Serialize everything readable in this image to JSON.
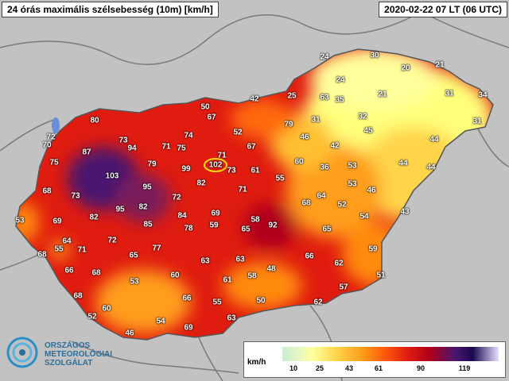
{
  "title": "24 órás maximális szélsebesség (10m) [km/h]",
  "timestamp": "2020-02-22 07 LT (06 UTC)",
  "logo": {
    "line1": "ORSZÁGOS",
    "line2": "METEOROLÓGIAI",
    "line3": "SZOLGÁLAT"
  },
  "legend": {
    "unit": "km/h",
    "ticks": [
      "10",
      "25",
      "43",
      "61",
      "90",
      "119"
    ]
  },
  "colors": {
    "land": "#c2c2c2",
    "border": "#7a7a7a",
    "highlight": "#ffe000"
  },
  "stations": [
    [
      "24",
      408,
      72
    ],
    [
      "30",
      471,
      70
    ],
    [
      "21",
      553,
      82
    ],
    [
      "20",
      510,
      86
    ],
    [
      "24",
      428,
      101
    ],
    [
      "21",
      481,
      119
    ],
    [
      "63",
      408,
      123
    ],
    [
      "35",
      427,
      126
    ],
    [
      "31",
      565,
      118
    ],
    [
      "34",
      607,
      120
    ],
    [
      "25",
      367,
      121
    ],
    [
      "42",
      320,
      125
    ],
    [
      "50",
      258,
      135
    ],
    [
      "67",
      266,
      148
    ],
    [
      "32",
      456,
      147
    ],
    [
      "31",
      397,
      151
    ],
    [
      "31",
      600,
      153
    ],
    [
      "79",
      363,
      157
    ],
    [
      "52",
      299,
      167
    ],
    [
      "45",
      463,
      165
    ],
    [
      "44",
      546,
      176
    ],
    [
      "46",
      383,
      173
    ],
    [
      "74",
      237,
      171
    ],
    [
      "80",
      119,
      152
    ],
    [
      "72",
      64,
      173
    ],
    [
      "70",
      59,
      183
    ],
    [
      "73",
      155,
      177
    ],
    [
      "94",
      166,
      187
    ],
    [
      "71",
      209,
      185
    ],
    [
      "75",
      228,
      187
    ],
    [
      "67",
      316,
      185
    ],
    [
      "42",
      421,
      184
    ],
    [
      "87",
      109,
      192
    ],
    [
      "75",
      68,
      205
    ],
    [
      "79",
      191,
      207
    ],
    [
      "71",
      279,
      196
    ],
    [
      "99",
      234,
      213
    ],
    [
      "102",
      271,
      208
    ],
    [
      "73",
      291,
      215
    ],
    [
      "61",
      321,
      215
    ],
    [
      "60",
      376,
      204
    ],
    [
      "36",
      408,
      211
    ],
    [
      "53",
      443,
      209
    ],
    [
      "44",
      507,
      206
    ],
    [
      "44",
      542,
      211
    ],
    [
      "103",
      141,
      222
    ],
    [
      "55",
      352,
      225
    ],
    [
      "82",
      253,
      231
    ],
    [
      "95",
      185,
      236
    ],
    [
      "68",
      59,
      241
    ],
    [
      "73",
      95,
      247
    ],
    [
      "71",
      305,
      239
    ],
    [
      "53",
      443,
      232
    ],
    [
      "46",
      467,
      240
    ],
    [
      "72",
      222,
      249
    ],
    [
      "64",
      404,
      247
    ],
    [
      "43",
      509,
      267
    ],
    [
      "53",
      25,
      278
    ],
    [
      "95",
      151,
      264
    ],
    [
      "82",
      180,
      261
    ],
    [
      "68",
      385,
      256
    ],
    [
      "52",
      430,
      258
    ],
    [
      "84",
      229,
      272
    ],
    [
      "69",
      271,
      269
    ],
    [
      "58",
      321,
      277
    ],
    [
      "54",
      458,
      273
    ],
    [
      "69",
      72,
      279
    ],
    [
      "82",
      118,
      274
    ],
    [
      "85",
      186,
      283
    ],
    [
      "78",
      237,
      288
    ],
    [
      "59",
      269,
      284
    ],
    [
      "65",
      309,
      289
    ],
    [
      "92",
      343,
      284
    ],
    [
      "65",
      411,
      289
    ],
    [
      "64",
      84,
      304
    ],
    [
      "72",
      141,
      303
    ],
    [
      "55",
      74,
      314
    ],
    [
      "71",
      103,
      315
    ],
    [
      "77",
      197,
      313
    ],
    [
      "59",
      469,
      314
    ],
    [
      "68",
      53,
      321
    ],
    [
      "65",
      168,
      322
    ],
    [
      "63",
      258,
      329
    ],
    [
      "63",
      302,
      327
    ],
    [
      "66",
      389,
      323
    ],
    [
      "62",
      426,
      332
    ],
    [
      "66",
      87,
      341
    ],
    [
      "68",
      121,
      344
    ],
    [
      "48",
      341,
      339
    ],
    [
      "60",
      220,
      347
    ],
    [
      "61",
      286,
      353
    ],
    [
      "58",
      317,
      348
    ],
    [
      "51",
      479,
      347
    ],
    [
      "53",
      169,
      355
    ],
    [
      "57",
      432,
      362
    ],
    [
      "68",
      98,
      373
    ],
    [
      "66",
      235,
      376
    ],
    [
      "55",
      273,
      381
    ],
    [
      "50",
      328,
      379
    ],
    [
      "62",
      400,
      381
    ],
    [
      "60",
      134,
      389
    ],
    [
      "52",
      116,
      399
    ],
    [
      "54",
      202,
      405
    ],
    [
      "63",
      291,
      401
    ],
    [
      "46",
      163,
      420
    ],
    [
      "69",
      237,
      413
    ]
  ]
}
